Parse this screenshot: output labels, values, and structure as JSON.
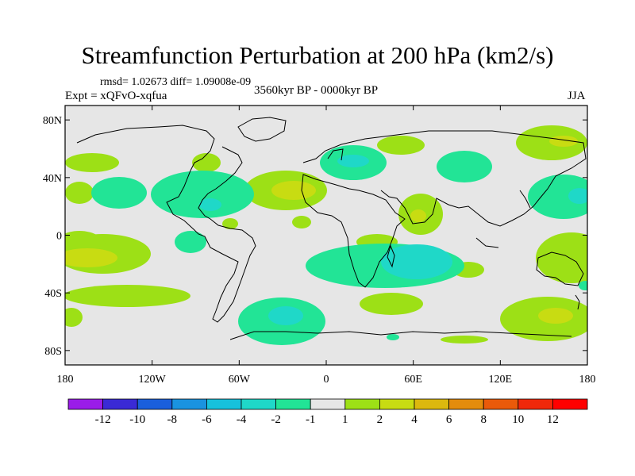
{
  "header": {
    "title": "Streamfunction Perturbation at 200 hPa (km2/s)",
    "stats": "rmsd= 1.02673 diff= 1.09008e-09",
    "experiment": "Expt = xQFvO-xqfua",
    "period": "3560kyr BP - 0000kyr BP",
    "season": "JJA"
  },
  "axes": {
    "lon_ticks": [
      "180",
      "120W",
      "60W",
      "0",
      "60E",
      "120E",
      "180"
    ],
    "lat_ticks": [
      "80N",
      "40N",
      "0",
      "40S",
      "80S"
    ],
    "lon_values": [
      -180,
      -120,
      -60,
      0,
      60,
      120,
      180
    ],
    "lat_values": [
      80,
      40,
      0,
      -40,
      -80
    ],
    "lon_range": [
      -180,
      180
    ],
    "lat_range": [
      -90,
      90
    ]
  },
  "colorbar": {
    "labels": [
      "-12",
      "-10",
      "-8",
      "-6",
      "-4",
      "-2",
      "-1",
      "1",
      "2",
      "4",
      "6",
      "8",
      "10",
      "12"
    ],
    "colors": [
      "#9a1ce8",
      "#3a2ad6",
      "#1a5fdc",
      "#1a93e0",
      "#17c1dc",
      "#1fd8c8",
      "#22e496",
      "#e6e6e6",
      "#9de016",
      "#c8dc12",
      "#dcb80e",
      "#e48c0c",
      "#ea5a0a",
      "#f0280a",
      "#ff0000"
    ]
  },
  "chart_data": {
    "type": "heatmap",
    "title": "Streamfunction Perturbation at 200 hPa (km2/s)",
    "units": "km2/s",
    "levels": [
      -12,
      -10,
      -8,
      -6,
      -4,
      -2,
      -1,
      1,
      2,
      4,
      6,
      8,
      10,
      12
    ],
    "anomalies": [
      {
        "lon": -30,
        "lat": 30,
        "value": 4
      },
      {
        "lon": -160,
        "lat": -22,
        "value": 4
      },
      {
        "lon": 160,
        "lat": -60,
        "value": 4
      },
      {
        "lon": 60,
        "lat": 15,
        "value": 4
      },
      {
        "lon": 10,
        "lat": 58,
        "value": -2
      },
      {
        "lon": 50,
        "lat": -17,
        "value": -4
      },
      {
        "lon": -35,
        "lat": -58,
        "value": -4
      },
      {
        "lon": -80,
        "lat": 22,
        "value": -2
      },
      {
        "lon": 165,
        "lat": 32,
        "value": -2
      },
      {
        "lon": 160,
        "lat": 65,
        "value": 2
      },
      {
        "lon": 160,
        "lat": -15,
        "value": 2
      }
    ]
  }
}
